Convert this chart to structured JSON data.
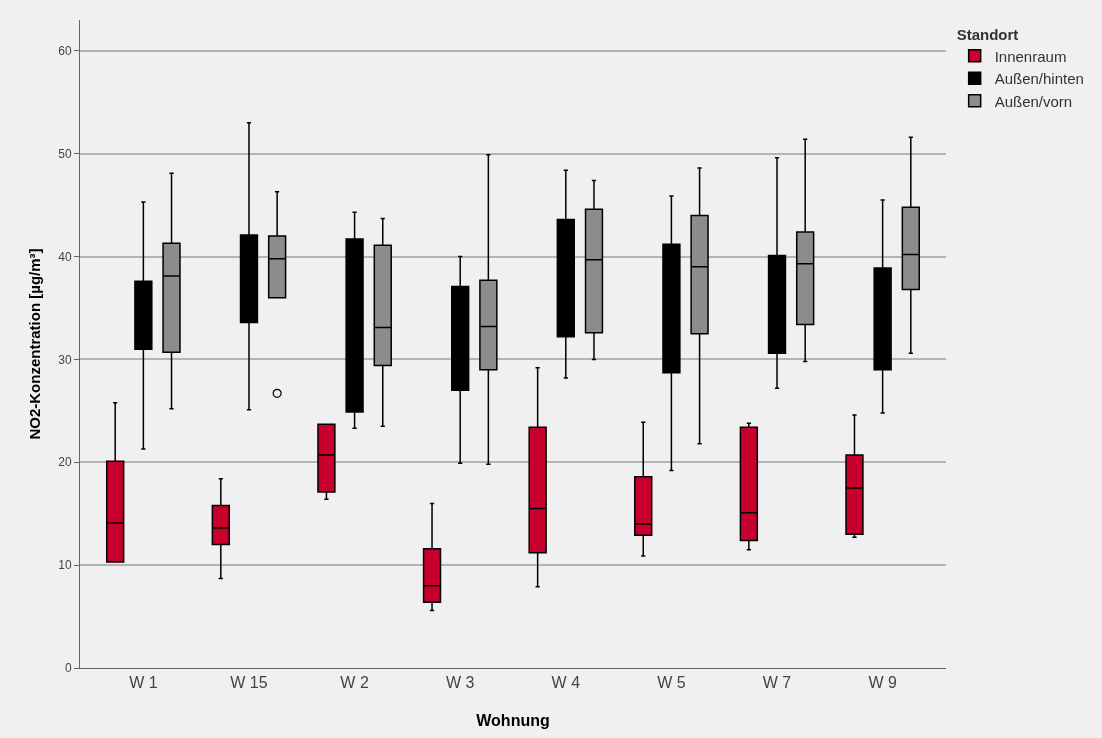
{
  "chart_data": {
    "type": "box",
    "xlabel": "Wohnung",
    "ylabel": "NO2-Konzentration [µg/m³]",
    "legend_title": "Standort",
    "legend": "top right",
    "grid": "y",
    "ylim": [
      0,
      63
    ],
    "yticks": [
      0,
      10,
      20,
      30,
      40,
      50,
      60
    ],
    "categories": [
      "W 1",
      "W 15",
      "W 2",
      "W 3",
      "W 4",
      "W 5",
      "W 7",
      "W 9"
    ],
    "series": [
      {
        "name": "Innenraum",
        "color": "#c8002d",
        "boxes": [
          {
            "low": 10.3,
            "q1": 10.3,
            "median": 14.1,
            "q3": 20.1,
            "high": 25.8
          },
          {
            "low": 8.7,
            "q1": 12.0,
            "median": 13.6,
            "q3": 15.8,
            "high": 18.4
          },
          {
            "low": 16.4,
            "q1": 17.1,
            "median": 20.7,
            "q3": 23.7,
            "high": 23.7
          },
          {
            "low": 5.6,
            "q1": 6.4,
            "median": 8.0,
            "q3": 11.6,
            "high": 16.0
          },
          {
            "low": 7.9,
            "q1": 11.2,
            "median": 15.5,
            "q3": 23.4,
            "high": 29.2
          },
          {
            "low": 10.9,
            "q1": 12.9,
            "median": 14.0,
            "q3": 18.6,
            "high": 23.9
          },
          {
            "low": 11.5,
            "q1": 12.4,
            "median": 15.1,
            "q3": 23.4,
            "high": 23.8
          },
          {
            "low": 12.7,
            "q1": 13.0,
            "median": 17.5,
            "q3": 20.7,
            "high": 24.6
          }
        ]
      },
      {
        "name": "Außen/hinten",
        "color": "#000000",
        "boxes": [
          {
            "low": 21.3,
            "q1": 31.0,
            "median": 34.0,
            "q3": 37.6,
            "high": 45.3
          },
          {
            "low": 25.1,
            "q1": 33.6,
            "median": 38.0,
            "q3": 42.1,
            "high": 53.0
          },
          {
            "low": 23.3,
            "q1": 24.9,
            "median": 33.0,
            "q3": 41.7,
            "high": 44.3
          },
          {
            "low": 19.9,
            "q1": 27.0,
            "median": 32.0,
            "q3": 37.1,
            "high": 40.0
          },
          {
            "low": 28.2,
            "q1": 32.2,
            "median": 38.0,
            "q3": 43.6,
            "high": 48.4
          },
          {
            "low": 19.2,
            "q1": 28.7,
            "median": 35.0,
            "q3": 41.2,
            "high": 45.9
          },
          {
            "low": 27.2,
            "q1": 30.6,
            "median": 35.0,
            "q3": 40.1,
            "high": 49.6
          },
          {
            "low": 24.8,
            "q1": 29.0,
            "median": 34.0,
            "q3": 38.9,
            "high": 45.5
          }
        ]
      },
      {
        "name": "Außen/vorn",
        "color": "#8c8c8c",
        "boxes": [
          {
            "low": 25.2,
            "q1": 30.7,
            "median": 38.1,
            "q3": 41.3,
            "high": 48.1
          },
          {
            "low": 36.0,
            "q1": 36.0,
            "median": 39.8,
            "q3": 42.0,
            "high": 46.3,
            "outliers": [
              26.7
            ]
          },
          {
            "low": 23.5,
            "q1": 29.4,
            "median": 33.1,
            "q3": 41.1,
            "high": 43.7
          },
          {
            "low": 19.8,
            "q1": 29.0,
            "median": 33.2,
            "q3": 37.7,
            "high": 49.9
          },
          {
            "low": 30.0,
            "q1": 32.6,
            "median": 39.7,
            "q3": 44.6,
            "high": 47.4
          },
          {
            "low": 21.8,
            "q1": 32.5,
            "median": 39.0,
            "q3": 44.0,
            "high": 48.6
          },
          {
            "low": 29.8,
            "q1": 33.4,
            "median": 39.3,
            "q3": 42.4,
            "high": 51.4
          },
          {
            "low": 30.6,
            "q1": 36.8,
            "median": 40.2,
            "q3": 44.8,
            "high": 51.6
          }
        ]
      }
    ]
  }
}
